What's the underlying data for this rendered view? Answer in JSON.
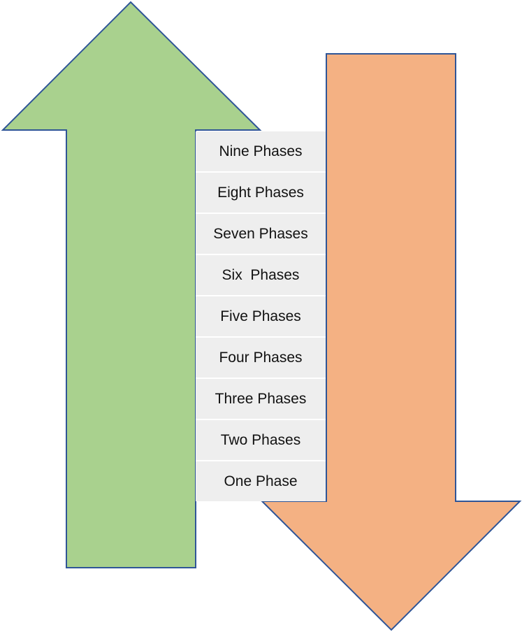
{
  "colors": {
    "up_arrow_fill": "#a9d18e",
    "down_arrow_fill": "#f4b183",
    "arrow_outline": "#2f5597",
    "list_background": "#eeeeee"
  },
  "icons": {
    "up_arrow": "up-arrow-icon",
    "down_arrow": "down-arrow-icon"
  },
  "phases": [
    "Nine Phases",
    "Eight Phases",
    "Seven Phases",
    "Six  Phases",
    "Five Phases",
    "Four Phases",
    "Three Phases",
    "Two Phases",
    "One Phase"
  ]
}
